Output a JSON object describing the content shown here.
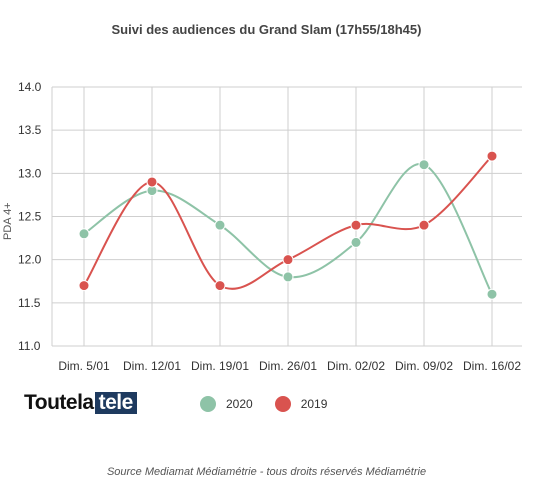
{
  "chart_data": {
    "type": "line",
    "title": "Suivi des audiences du Grand Slam (17h55/18h45)",
    "ylabel": "PDA 4+",
    "xlabel": "",
    "categories": [
      "Dim. 5/01",
      "Dim. 12/01",
      "Dim. 19/01",
      "Dim. 26/01",
      "Dim. 02/02",
      "Dim. 09/02",
      "Dim. 16/02"
    ],
    "ylim": [
      11.0,
      14.0
    ],
    "yticks": [
      "11.0",
      "11.5",
      "12.0",
      "12.5",
      "13.0",
      "13.5",
      "14.0"
    ],
    "grid": true,
    "legend_position": "bottom",
    "series": [
      {
        "name": "2020",
        "color": "#8ec3a7",
        "values": [
          12.3,
          12.8,
          12.4,
          11.8,
          12.2,
          13.1,
          11.6
        ]
      },
      {
        "name": "2019",
        "color": "#d9534f",
        "values": [
          11.7,
          12.9,
          11.7,
          12.0,
          12.4,
          12.4,
          13.2
        ]
      }
    ]
  },
  "logo": {
    "part1": "Toutela",
    "part2": "tele"
  },
  "source": "Source Mediamat Médiamétrie - tous droits réservés Médiamétrie"
}
